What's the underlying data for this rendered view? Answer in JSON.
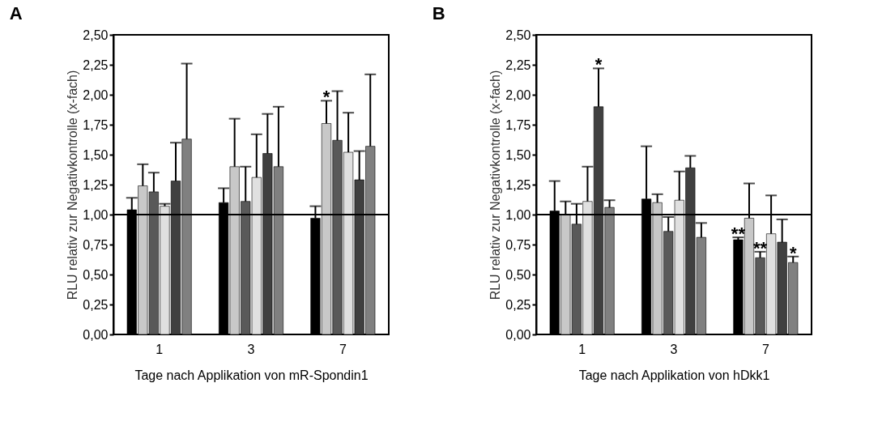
{
  "chart_data": [
    {
      "type": "bar",
      "title": "A",
      "xlabel": "Tage nach Applikation von mR-Spondin1",
      "ylabel": "RLU relativ zur Negativkontrolle (x-fach)",
      "categories": [
        "1",
        "3",
        "7"
      ],
      "series": [
        {
          "color": "#000000",
          "values": [
            1.04,
            1.1,
            0.97
          ],
          "errors": [
            [
              1.04,
              1.14
            ],
            [
              1.1,
              1.22
            ],
            [
              0.97,
              1.07
            ]
          ]
        },
        {
          "color": "#c8c8c8",
          "values": [
            1.24,
            1.4,
            1.76
          ],
          "errors": [
            [
              1.24,
              1.42
            ],
            [
              1.4,
              1.8
            ],
            [
              1.76,
              1.95
            ]
          ]
        },
        {
          "color": "#595959",
          "values": [
            1.19,
            1.11,
            1.62
          ],
          "errors": [
            [
              1.19,
              1.35
            ],
            [
              1.11,
              1.4
            ],
            [
              1.62,
              2.03
            ]
          ]
        },
        {
          "color": "#e0e0e0",
          "values": [
            1.07,
            1.31,
            1.52
          ],
          "errors": [
            [
              1.07,
              1.09
            ],
            [
              1.31,
              1.67
            ],
            [
              1.52,
              1.85
            ]
          ]
        },
        {
          "color": "#404040",
          "values": [
            1.28,
            1.51,
            1.29
          ],
          "errors": [
            [
              1.28,
              1.6
            ],
            [
              1.51,
              1.84
            ],
            [
              1.29,
              1.53
            ]
          ]
        },
        {
          "color": "#808080",
          "values": [
            1.63,
            1.4,
            1.57
          ],
          "errors": [
            [
              1.63,
              2.26
            ],
            [
              1.4,
              1.9
            ],
            [
              1.57,
              2.17
            ]
          ]
        }
      ],
      "ylim": [
        0,
        2.5
      ],
      "yticks": [
        {
          "value": 0,
          "label": "0,00"
        },
        {
          "value": 0.25,
          "label": "0,25"
        },
        {
          "value": 0.5,
          "label": "0,50"
        },
        {
          "value": 0.75,
          "label": "0,75"
        },
        {
          "value": 1,
          "label": "1,00"
        },
        {
          "value": 1.25,
          "label": "1,25"
        },
        {
          "value": 1.5,
          "label": "1,50"
        },
        {
          "value": 1.75,
          "label": "1,75"
        },
        {
          "value": 2,
          "label": "2,00"
        },
        {
          "value": 2.25,
          "label": "2,25"
        },
        {
          "value": 2.5,
          "label": "2,50"
        }
      ],
      "ref_lines": [
        {
          "axis": "y",
          "value": 1,
          "label": null,
          "color": "#000000"
        }
      ],
      "annotations": [
        "*"
      ],
      "grid": false,
      "legend": false
    },
    {
      "type": "bar",
      "title": "B",
      "xlabel": "Tage nach Applikation von hDkk1",
      "ylabel": "RLU relativ zur Negativkontrolle (x-fach)",
      "categories": [
        "1",
        "3",
        "7"
      ],
      "series": [
        {
          "color": "#000000",
          "values": [
            1.03,
            1.13,
            0.79
          ],
          "errors": [
            [
              1.03,
              1.28
            ],
            [
              1.13,
              1.57
            ],
            [
              0.79,
              0.81
            ]
          ]
        },
        {
          "color": "#c8c8c8",
          "values": [
            1.0,
            1.1,
            0.97
          ],
          "errors": [
            [
              1.0,
              1.11
            ],
            [
              1.1,
              1.17
            ],
            [
              0.97,
              1.26
            ]
          ]
        },
        {
          "color": "#595959",
          "values": [
            0.92,
            0.86,
            0.64
          ],
          "errors": [
            [
              0.92,
              1.09
            ],
            [
              0.86,
              0.98
            ],
            [
              0.64,
              0.69
            ]
          ]
        },
        {
          "color": "#e0e0e0",
          "values": [
            1.11,
            1.12,
            0.84
          ],
          "errors": [
            [
              1.11,
              1.4
            ],
            [
              1.12,
              1.36
            ],
            [
              0.84,
              1.16
            ]
          ]
        },
        {
          "color": "#404040",
          "values": [
            1.9,
            1.39,
            0.77
          ],
          "errors": [
            [
              1.9,
              2.22
            ],
            [
              1.39,
              1.49
            ],
            [
              0.77,
              0.96
            ]
          ]
        },
        {
          "color": "#808080",
          "values": [
            1.06,
            0.81,
            0.6
          ],
          "errors": [
            [
              1.06,
              1.12
            ],
            [
              0.81,
              0.93
            ],
            [
              0.6,
              0.65
            ]
          ]
        }
      ],
      "ylim": [
        0,
        2.5
      ],
      "yticks": [
        {
          "value": 0,
          "label": "0,00"
        },
        {
          "value": 0.25,
          "label": "0,25"
        },
        {
          "value": 0.5,
          "label": "0,50"
        },
        {
          "value": 0.75,
          "label": "0,75"
        },
        {
          "value": 1,
          "label": "1,00"
        },
        {
          "value": 1.25,
          "label": "1,25"
        },
        {
          "value": 1.5,
          "label": "1,50"
        },
        {
          "value": 1.75,
          "label": "1,75"
        },
        {
          "value": 2,
          "label": "2,00"
        },
        {
          "value": 2.25,
          "label": "2,25"
        },
        {
          "value": 2.5,
          "label": "2,50"
        }
      ],
      "ref_lines": [
        {
          "axis": "y",
          "value": 1,
          "label": null,
          "color": "#000000"
        }
      ],
      "annotations": [
        "*",
        "**",
        "**",
        "*"
      ],
      "grid": false,
      "legend": false
    }
  ]
}
